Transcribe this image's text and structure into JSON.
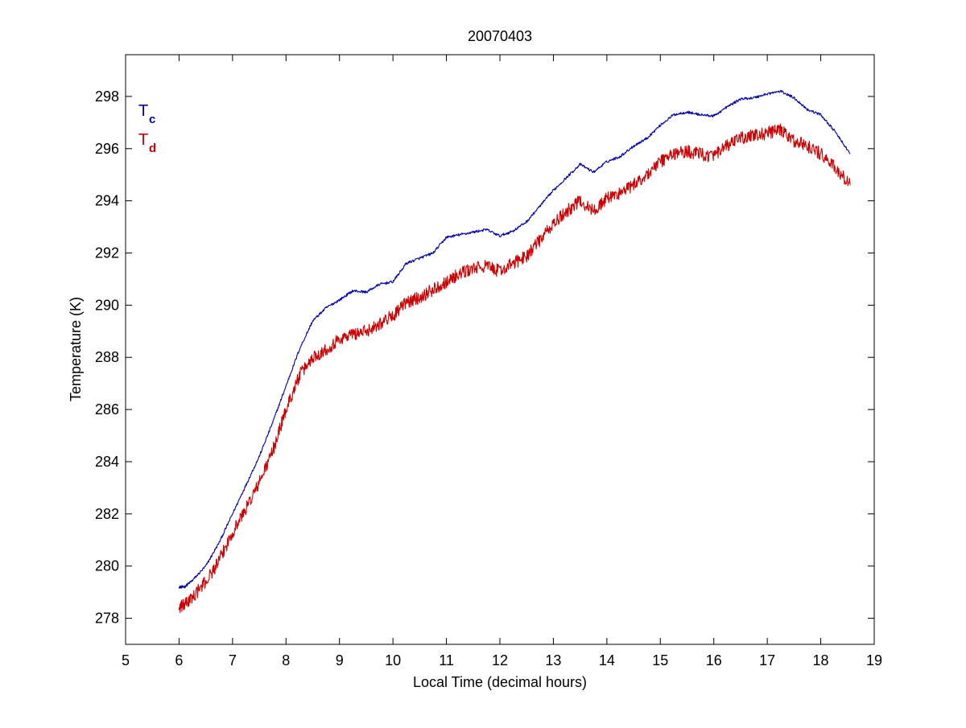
{
  "chart_data": {
    "type": "line",
    "title": "20070403",
    "xlabel": "Local Time (decimal hours)",
    "ylabel": "Temperature (K)",
    "xlim": [
      5,
      19
    ],
    "ylim": [
      277,
      299.6
    ],
    "xticks": [
      5,
      6,
      7,
      8,
      9,
      10,
      11,
      12,
      13,
      14,
      15,
      16,
      17,
      18,
      19
    ],
    "yticks": [
      278,
      280,
      282,
      284,
      286,
      288,
      290,
      292,
      294,
      296,
      298
    ],
    "grid": false,
    "legend_position": "top-left",
    "series": [
      {
        "name": "T",
        "subscript": "c",
        "color": "#0000aa",
        "noise": 0.05,
        "x": [
          6.0,
          6.1,
          6.25,
          6.5,
          6.75,
          7.0,
          7.25,
          7.5,
          7.75,
          8.0,
          8.25,
          8.5,
          8.75,
          9.0,
          9.25,
          9.5,
          9.75,
          10.0,
          10.25,
          10.5,
          10.75,
          11.0,
          11.25,
          11.5,
          11.75,
          12.0,
          12.25,
          12.5,
          12.75,
          13.0,
          13.25,
          13.5,
          13.75,
          14.0,
          14.25,
          14.5,
          14.75,
          15.0,
          15.25,
          15.5,
          15.75,
          16.0,
          16.25,
          16.5,
          16.75,
          17.0,
          17.25,
          17.5,
          17.75,
          18.0,
          18.25,
          18.55
        ],
        "y": [
          279.2,
          279.2,
          279.45,
          280.0,
          280.9,
          282.0,
          283.1,
          284.2,
          285.5,
          286.9,
          288.3,
          289.4,
          289.9,
          290.2,
          290.55,
          290.5,
          290.8,
          290.9,
          291.6,
          291.8,
          292.0,
          292.6,
          292.7,
          292.8,
          292.9,
          292.65,
          292.85,
          293.2,
          293.8,
          294.4,
          294.9,
          295.4,
          295.1,
          295.5,
          295.7,
          296.1,
          296.4,
          296.9,
          297.3,
          297.4,
          297.3,
          297.25,
          297.6,
          297.9,
          297.95,
          298.1,
          298.2,
          297.95,
          297.5,
          297.3,
          296.7,
          295.8
        ]
      },
      {
        "name": "T",
        "subscript": "d",
        "color": "#cc0000",
        "noise": 0.25,
        "x": [
          6.0,
          6.1,
          6.25,
          6.5,
          6.75,
          7.0,
          7.25,
          7.5,
          7.75,
          8.0,
          8.25,
          8.5,
          8.75,
          9.0,
          9.25,
          9.5,
          9.75,
          10.0,
          10.25,
          10.5,
          10.75,
          11.0,
          11.25,
          11.5,
          11.75,
          12.0,
          12.25,
          12.5,
          12.75,
          13.0,
          13.25,
          13.5,
          13.75,
          14.0,
          14.25,
          14.5,
          14.75,
          15.0,
          15.25,
          15.5,
          15.75,
          16.0,
          16.25,
          16.5,
          16.75,
          17.0,
          17.25,
          17.5,
          17.75,
          18.0,
          18.25,
          18.55
        ],
        "y": [
          278.4,
          278.5,
          278.8,
          279.4,
          280.2,
          281.3,
          282.2,
          283.2,
          284.4,
          286.0,
          287.3,
          288.0,
          288.3,
          288.7,
          288.9,
          289.0,
          289.3,
          289.6,
          290.1,
          290.3,
          290.6,
          290.9,
          291.2,
          291.4,
          291.5,
          291.3,
          291.6,
          291.9,
          292.5,
          293.1,
          293.6,
          294.0,
          293.6,
          294.1,
          294.3,
          294.6,
          295.0,
          295.5,
          295.8,
          295.9,
          295.8,
          295.7,
          296.1,
          296.4,
          296.5,
          296.6,
          296.7,
          296.3,
          296.1,
          295.8,
          295.3,
          294.6
        ]
      }
    ]
  }
}
